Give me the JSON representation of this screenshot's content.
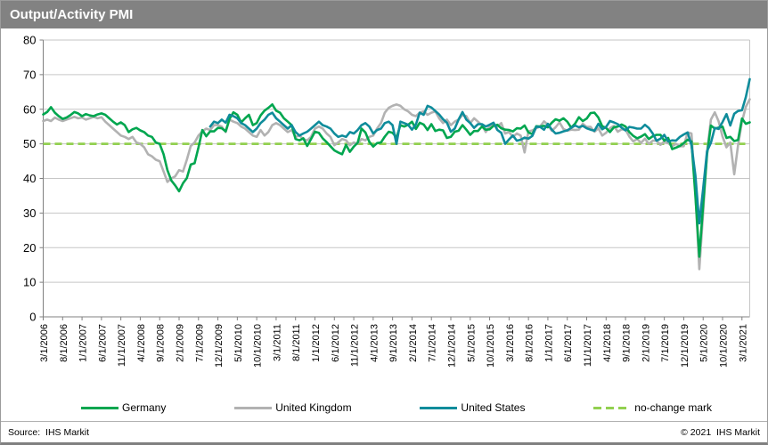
{
  "window": {
    "title": "Output/Activity PMI"
  },
  "chart_data": {
    "type": "line",
    "title": "Output/Activity PMI",
    "x_start": "3/1/2006",
    "x_end": "5/1/2021",
    "frequency": "monthly",
    "ylim": [
      0,
      80
    ],
    "yticks": [
      0,
      10,
      20,
      30,
      40,
      50,
      60,
      70,
      80
    ],
    "xtick_step_months": 5,
    "xtick_labels": [
      "3/1/2006",
      "8/1/2006",
      "1/1/2007",
      "6/1/2007",
      "11/1/2007",
      "4/1/2008",
      "9/1/2008",
      "2/1/2009",
      "7/1/2009",
      "12/1/2009",
      "5/1/2010",
      "10/1/2010",
      "3/1/2011",
      "8/1/2011",
      "1/1/2012",
      "6/1/2012",
      "11/1/2012",
      "4/1/2013",
      "9/1/2013",
      "2/1/2014",
      "7/1/2014",
      "12/1/2014",
      "5/1/2015",
      "10/1/2015",
      "3/1/2016",
      "8/1/2016",
      "1/1/2017",
      "6/1/2017",
      "11/1/2017",
      "4/1/2018",
      "9/1/2018",
      "2/1/2019",
      "7/1/2019",
      "12/1/2019",
      "5/1/2020",
      "10/1/2020",
      "3/1/2021"
    ],
    "grid": "horizontal",
    "legend_position": "bottom",
    "no_change_mark": {
      "value": 50,
      "color": "#92d050",
      "style": "dashed"
    },
    "series": [
      {
        "name": "United Kingdom",
        "color": "#b2b2b2",
        "start_index": 0,
        "values": [
          56.6,
          57.0,
          56.6,
          57.6,
          57.0,
          56.6,
          57.0,
          57.4,
          57.8,
          57.4,
          57.6,
          57.0,
          57.4,
          57.8,
          57.4,
          57.7,
          56.4,
          55.4,
          54.4,
          53.4,
          52.4,
          52.0,
          51.4,
          52.0,
          50.4,
          50.0,
          49.0,
          47.0,
          46.4,
          45.4,
          45.0,
          42.0,
          39.0,
          40.0,
          40.6,
          42.4,
          42.0,
          45.4,
          49.4,
          50.4,
          52.4,
          53.6,
          54.4,
          54.0,
          55.4,
          55.4,
          55.0,
          53.4,
          57.0,
          56.4,
          56.0,
          55.0,
          54.4,
          53.4,
          52.4,
          52.0,
          54.0,
          52.4,
          53.4,
          55.4,
          56.0,
          55.4,
          54.4,
          53.4,
          54.0,
          52.0,
          52.4,
          51.4,
          51.0,
          52.0,
          54.4,
          55.0,
          54.4,
          53.0,
          52.0,
          49.6,
          50.4,
          51.4,
          51.0,
          49.6,
          50.4,
          50.0,
          51.4,
          51.0,
          52.0,
          52.4,
          54.4,
          56.0,
          59.0,
          60.4,
          61.0,
          61.4,
          61.0,
          60.0,
          59.4,
          58.4,
          58.0,
          59.0,
          59.4,
          58.4,
          59.0,
          59.4,
          57.4,
          56.0,
          57.0,
          55.4,
          56.4,
          57.0,
          58.4,
          58.0,
          56.0,
          57.4,
          56.4,
          55.4,
          53.4,
          55.0,
          55.4,
          55.0,
          56.0,
          53.0,
          53.4,
          52.0,
          53.0,
          52.4,
          47.5,
          53.6,
          53.9,
          54.5,
          55.0,
          56.5,
          55.5,
          53.8,
          54.8,
          56.2,
          54.3,
          53.8,
          54.1,
          54.0,
          54.1,
          55.8,
          54.9,
          54.9,
          53.5,
          54.5,
          52.4,
          53.2,
          54.5,
          55.2,
          53.5,
          54.2,
          54.1,
          52.1,
          50.7,
          51.4,
          50.3,
          51.5,
          50.0,
          50.9,
          50.9,
          49.7,
          50.7,
          50.2,
          49.3,
          50.0,
          49.3,
          49.3,
          53.3,
          53.0,
          36.0,
          13.8,
          30.0,
          47.7,
          57.0,
          59.1,
          56.5,
          52.1,
          49.0,
          50.4,
          41.2,
          49.6,
          56.4,
          60.7,
          62.9
        ]
      },
      {
        "name": "Germany",
        "color": "#00a64f",
        "start_index": 0,
        "values": [
          58.5,
          59.2,
          60.6,
          59.0,
          58.0,
          57.2,
          57.6,
          58.3,
          59.2,
          58.8,
          58.0,
          58.6,
          58.2,
          58.0,
          58.5,
          58.8,
          58.4,
          57.4,
          56.4,
          55.6,
          56.2,
          55.4,
          53.4,
          54.2,
          54.6,
          53.9,
          53.4,
          52.4,
          52.0,
          50.4,
          50.0,
          47.0,
          42.4,
          39.4,
          38.0,
          36.3,
          38.6,
          40.1,
          44.0,
          44.4,
          49.0,
          54.0,
          52.2,
          53.6,
          53.6,
          54.6,
          54.5,
          53.6,
          57.2,
          59.1,
          58.4,
          56.2,
          57.4,
          58.4,
          55.4,
          56.0,
          58.2,
          59.6,
          60.4,
          61.4,
          59.6,
          59.0,
          57.4,
          56.4,
          55.4,
          51.4,
          51.0,
          51.6,
          49.4,
          51.4,
          53.5,
          53.2,
          51.6,
          50.5,
          49.3,
          48.1,
          47.5,
          47.0,
          49.7,
          47.7,
          49.2,
          50.3,
          54.4,
          53.3,
          50.6,
          49.2,
          50.2,
          50.4,
          52.1,
          53.5,
          53.2,
          51.8,
          55.4,
          55.0,
          55.5,
          56.4,
          54.3,
          56.1,
          55.6,
          54.0,
          55.7,
          53.7,
          54.1,
          53.9,
          51.7,
          52.0,
          53.5,
          53.8,
          55.4,
          54.1,
          52.6,
          53.7,
          53.7,
          55.0,
          54.1,
          54.2,
          55.2,
          55.5,
          54.5,
          54.1,
          54.0,
          53.6,
          54.5,
          54.4,
          55.3,
          53.3,
          52.8,
          55.1,
          55.0,
          55.2,
          54.8,
          56.1,
          57.1,
          56.7,
          57.4,
          56.4,
          54.7,
          55.8,
          57.7,
          56.6,
          57.3,
          58.9,
          59.0,
          57.6,
          55.1,
          54.6,
          53.4,
          54.8,
          55.0,
          55.6,
          55.0,
          53.4,
          52.3,
          51.6,
          52.1,
          52.8,
          51.4,
          52.2,
          52.6,
          52.6,
          50.9,
          51.7,
          48.5,
          48.9,
          49.4,
          50.2,
          51.2,
          50.7,
          35.0,
          17.4,
          32.3,
          47.0,
          55.3,
          54.4,
          54.7,
          55.0,
          51.7,
          52.0,
          50.8,
          51.1,
          57.3,
          55.8,
          56.2
        ]
      },
      {
        "name": "United States",
        "color": "#0f8c9b",
        "start_index": 43,
        "values": [
          55.0,
          56.4,
          56.0,
          57.0,
          56.1,
          58.4,
          58.0,
          57.4,
          56.0,
          55.4,
          54.4,
          53.4,
          54.4,
          56.0,
          57.0,
          58.4,
          59.0,
          57.4,
          56.4,
          55.4,
          54.4,
          55.4,
          53.4,
          52.4,
          53.0,
          53.5,
          54.4,
          55.4,
          56.4,
          55.4,
          55.0,
          54.4,
          53.0,
          52.0,
          52.4,
          52.0,
          53.4,
          53.0,
          54.0,
          55.4,
          56.0,
          55.0,
          53.0,
          54.0,
          54.4,
          56.0,
          56.4,
          55.4,
          50.0,
          56.4,
          56.0,
          55.5,
          54.1,
          55.6,
          59.0,
          58.4,
          61.0,
          60.5,
          59.5,
          58.5,
          57.1,
          56.1,
          53.5,
          54.4,
          57.0,
          59.2,
          57.0,
          56.0,
          54.6,
          55.7,
          55.7,
          55.0,
          55.5,
          56.1,
          54.0,
          53.2,
          50.0,
          51.3,
          52.4,
          50.9,
          51.2,
          51.8,
          51.5,
          52.3,
          54.9,
          54.9,
          54.1,
          55.8,
          54.1,
          53.0,
          53.2,
          53.6,
          53.9,
          54.6,
          55.3,
          54.8,
          55.2,
          54.5,
          54.1,
          53.8,
          55.8,
          54.2,
          54.9,
          56.6,
          56.2,
          55.7,
          54.7,
          53.9,
          54.9,
          54.7,
          54.4,
          54.4,
          55.5,
          54.6,
          53.0,
          50.9,
          51.5,
          52.6,
          50.7,
          51.0,
          50.9,
          52.0,
          52.7,
          53.3,
          49.6,
          40.9,
          27.0,
          37.0,
          47.9,
          50.3,
          54.6,
          54.3,
          56.3,
          58.6,
          55.3,
          58.7,
          59.5,
          59.7,
          63.5,
          68.7
        ]
      }
    ]
  },
  "legend": {
    "items": [
      {
        "label": "Germany",
        "color": "#00a64f",
        "dashed": false
      },
      {
        "label": "United Kingdom",
        "color": "#b2b2b2",
        "dashed": false
      },
      {
        "label": "United States",
        "color": "#0f8c9b",
        "dashed": false
      },
      {
        "label": "no-change mark",
        "color": "#92d050",
        "dashed": true
      }
    ]
  },
  "footer": {
    "source": "Source:  IHS Markit",
    "copyright": "© 2021  IHS Markit"
  },
  "colors": {
    "titlebar_bg": "#828282",
    "titlebar_text": "#ffffff",
    "grid": "#c6c6c6",
    "axis": "#808080",
    "tick_text": "#000000"
  }
}
